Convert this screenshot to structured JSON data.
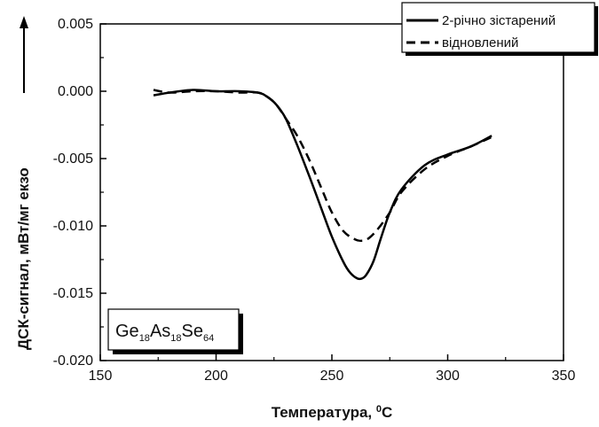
{
  "chart_data": {
    "type": "line",
    "xlabel": "Температура, °C",
    "ylabel": "ДСК-сигнал, мВт/мг  екзо",
    "xlim": [
      150,
      350
    ],
    "ylim": [
      -0.02,
      0.005
    ],
    "x_ticks": [
      "150",
      "200",
      "250",
      "300",
      "350"
    ],
    "y_ticks": [
      "0.005",
      "0.000",
      "-0.005",
      "-0.010",
      "-0.015",
      "-0.020"
    ],
    "grid": false,
    "legend_position": "top-right",
    "sample_label": {
      "parts": [
        "Ge",
        "18",
        "As",
        "18",
        "Se",
        "64"
      ]
    },
    "series": [
      {
        "name": "2-річно зістарений",
        "style": "solid",
        "color": "#000000",
        "x": [
          173,
          180,
          190,
          200,
          210,
          218,
          222,
          226,
          230,
          235,
          240,
          245,
          250,
          255,
          258,
          261,
          263,
          265,
          268,
          271,
          275,
          280,
          290,
          300,
          310,
          319
        ],
        "y": [
          -0.0003,
          -0.0001,
          0.0001,
          0.0,
          0.0,
          -0.0001,
          -0.0004,
          -0.001,
          -0.002,
          -0.004,
          -0.0062,
          -0.0085,
          -0.0108,
          -0.0127,
          -0.0135,
          -0.0139,
          -0.0139,
          -0.0136,
          -0.0126,
          -0.011,
          -0.009,
          -0.0073,
          -0.0055,
          -0.0047,
          -0.0041,
          -0.0033
        ]
      },
      {
        "name": "відновлений",
        "style": "dashed",
        "color": "#000000",
        "x": [
          173,
          180,
          190,
          200,
          210,
          218,
          222,
          226,
          230,
          235,
          240,
          245,
          250,
          255,
          260,
          263,
          266,
          270,
          275,
          280,
          290,
          300,
          310,
          319
        ],
        "y": [
          0.0001,
          -0.0001,
          0.0,
          0.0,
          -0.0001,
          -0.0001,
          -0.0004,
          -0.001,
          -0.002,
          -0.0033,
          -0.005,
          -0.007,
          -0.009,
          -0.0104,
          -0.011,
          -0.0111,
          -0.0109,
          -0.0102,
          -0.009,
          -0.0075,
          -0.0058,
          -0.0048,
          -0.0041,
          -0.0034
        ]
      }
    ]
  }
}
